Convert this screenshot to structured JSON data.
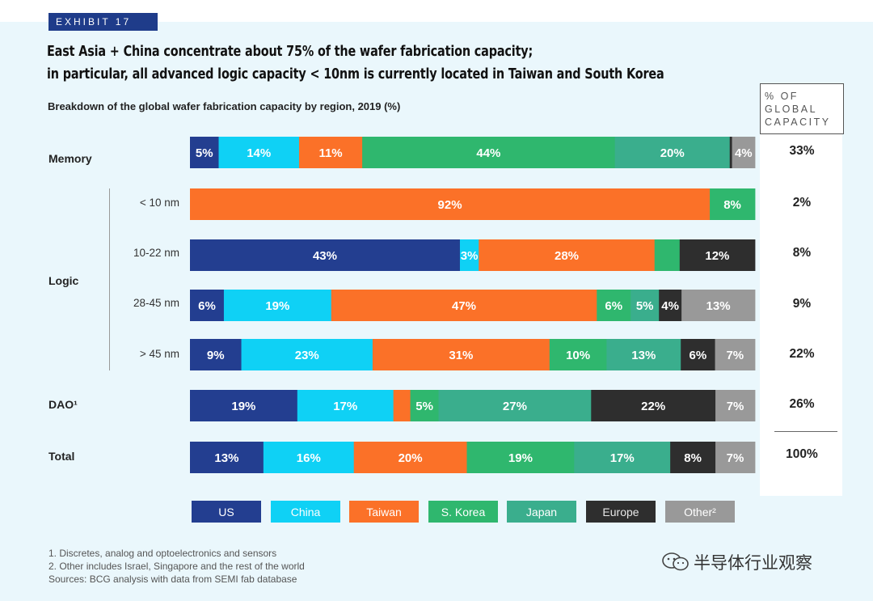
{
  "exhibit_label": "EXHIBIT 17",
  "headline": {
    "line1": "East Asia + China concentrate about 75% of the wafer fabrication capacity;",
    "line2": "in particular, all advanced logic capacity < 10nm is currently located in Taiwan and South Korea"
  },
  "subtitle": "Breakdown of the global wafer fabrication capacity by region, 2019 (%)",
  "pct_header": [
    "% OF",
    "GLOBAL",
    "CAPACITY"
  ],
  "row_labels": {
    "memory": "Memory",
    "logic": "Logic",
    "dao": "DAO¹",
    "total": "Total"
  },
  "logic_sublabels": [
    "< 10 nm",
    "10-22 nm",
    "28-45 nm",
    "> 45 nm"
  ],
  "colors": {
    "US": "#233e90",
    "China": "#0fd1f5",
    "Taiwan": "#fb7128",
    "S. Korea": "#2fb76e",
    "Japan": "#3aae8d",
    "Europe": "#2e2e2e",
    "Other": "#999999"
  },
  "legend": [
    {
      "label": "US",
      "key": "US"
    },
    {
      "label": "China",
      "key": "China"
    },
    {
      "label": "Taiwan",
      "key": "Taiwan"
    },
    {
      "label": "S. Korea",
      "key": "S. Korea"
    },
    {
      "label": "Japan",
      "key": "Japan"
    },
    {
      "label": "Europe",
      "key": "Europe"
    },
    {
      "label": "Other²",
      "key": "Other"
    }
  ],
  "chart_data": {
    "type": "bar",
    "orientation": "horizontal",
    "stacked": true,
    "normalized": true,
    "title": "Breakdown of the global wafer fabrication capacity by region, 2019 (%)",
    "series_names": [
      "US",
      "China",
      "Taiwan",
      "S. Korea",
      "Japan",
      "Europe",
      "Other"
    ],
    "rows": [
      {
        "group": "Memory",
        "label": "",
        "global_capacity": "33%",
        "segments": [
          {
            "series": "US",
            "value": 5,
            "label": "5%"
          },
          {
            "series": "China",
            "value": 14,
            "label": "14%"
          },
          {
            "series": "Taiwan",
            "value": 11,
            "label": "11%"
          },
          {
            "series": "S. Korea",
            "value": 44,
            "label": "44%"
          },
          {
            "series": "Japan",
            "value": 20,
            "label": "20%"
          },
          {
            "series": "Europe",
            "value": 0.4,
            "label": ""
          },
          {
            "series": "Other",
            "value": 4,
            "label": "4%"
          }
        ]
      },
      {
        "group": "Logic",
        "label": "< 10 nm",
        "global_capacity": "2%",
        "segments": [
          {
            "series": "Taiwan",
            "value": 92,
            "label": "92%"
          },
          {
            "series": "S. Korea",
            "value": 8,
            "label": "8%"
          }
        ]
      },
      {
        "group": "Logic",
        "label": "10-22 nm",
        "global_capacity": "8%",
        "segments": [
          {
            "series": "US",
            "value": 43,
            "label": "43%"
          },
          {
            "series": "China",
            "value": 3,
            "label": "3%"
          },
          {
            "series": "Taiwan",
            "value": 28,
            "label": "28%"
          },
          {
            "series": "S. Korea",
            "value": 4,
            "label": ""
          },
          {
            "series": "Europe",
            "value": 12,
            "label": "12%"
          }
        ]
      },
      {
        "group": "Logic",
        "label": "28-45 nm",
        "global_capacity": "9%",
        "segments": [
          {
            "series": "US",
            "value": 6,
            "label": "6%"
          },
          {
            "series": "China",
            "value": 19,
            "label": "19%"
          },
          {
            "series": "Taiwan",
            "value": 47,
            "label": "47%"
          },
          {
            "series": "S. Korea",
            "value": 6,
            "label": "6%"
          },
          {
            "series": "Japan",
            "value": 5,
            "label": "5%"
          },
          {
            "series": "Europe",
            "value": 4,
            "label": "4%"
          },
          {
            "series": "Other",
            "value": 13,
            "label": "13%"
          }
        ]
      },
      {
        "group": "Logic",
        "label": "> 45 nm",
        "global_capacity": "22%",
        "segments": [
          {
            "series": "US",
            "value": 9,
            "label": "9%"
          },
          {
            "series": "China",
            "value": 23,
            "label": "23%"
          },
          {
            "series": "Taiwan",
            "value": 31,
            "label": "31%"
          },
          {
            "series": "S. Korea",
            "value": 10,
            "label": "10%"
          },
          {
            "series": "Japan",
            "value": 13,
            "label": "13%"
          },
          {
            "series": "Europe",
            "value": 6,
            "label": "6%"
          },
          {
            "series": "Other",
            "value": 7,
            "label": "7%"
          }
        ]
      },
      {
        "group": "DAO¹",
        "label": "",
        "global_capacity": "26%",
        "segments": [
          {
            "series": "US",
            "value": 19,
            "label": "19%"
          },
          {
            "series": "China",
            "value": 17,
            "label": "17%"
          },
          {
            "series": "Taiwan",
            "value": 3,
            "label": ""
          },
          {
            "series": "S. Korea",
            "value": 5,
            "label": "5%"
          },
          {
            "series": "Japan",
            "value": 27,
            "label": "27%"
          },
          {
            "series": "Europe",
            "value": 22,
            "label": "22%"
          },
          {
            "series": "Other",
            "value": 7,
            "label": "7%"
          }
        ]
      },
      {
        "group": "Total",
        "label": "",
        "global_capacity": "100%",
        "segments": [
          {
            "series": "US",
            "value": 13,
            "label": "13%"
          },
          {
            "series": "China",
            "value": 16,
            "label": "16%"
          },
          {
            "series": "Taiwan",
            "value": 20,
            "label": "20%"
          },
          {
            "series": "S. Korea",
            "value": 19,
            "label": "19%"
          },
          {
            "series": "Japan",
            "value": 17,
            "label": "17%"
          },
          {
            "series": "Europe",
            "value": 8,
            "label": "8%"
          },
          {
            "series": "Other",
            "value": 7,
            "label": "7%"
          }
        ]
      }
    ]
  },
  "footnotes": [
    "1. Discretes, analog and optoelectronics and sensors",
    "2. Other includes Israel, Singapore and the rest of the world",
    "Sources: BCG analysis with data from SEMI fab database"
  ],
  "watermark": {
    "text": "半导体行业观察",
    "icon": "wechat-logo-icon"
  }
}
